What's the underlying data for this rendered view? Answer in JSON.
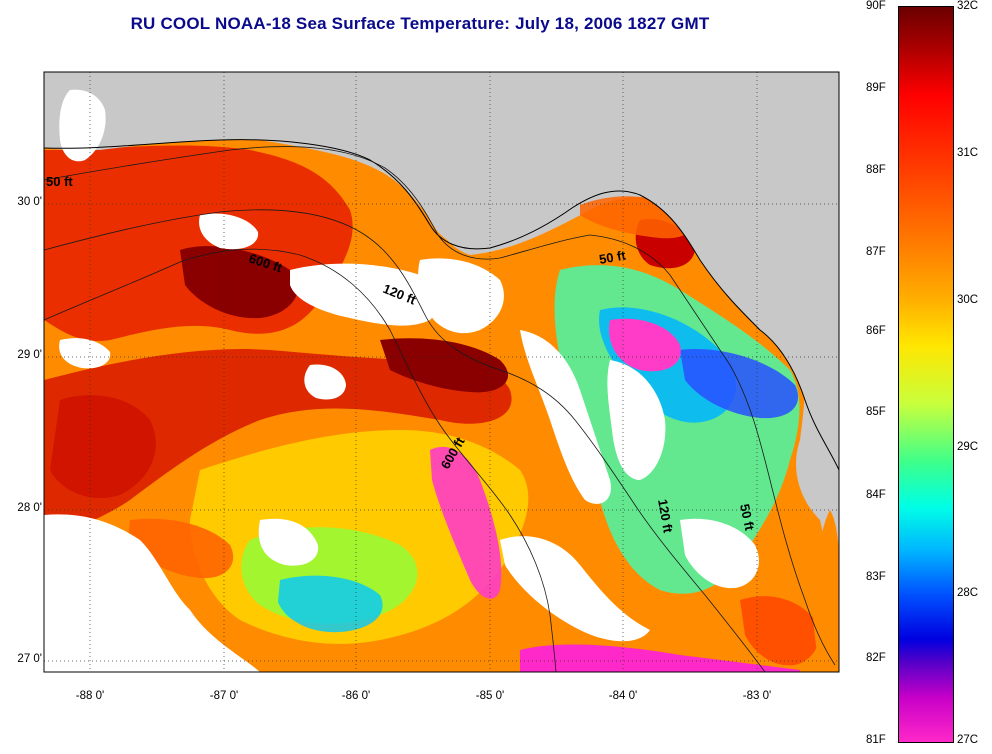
{
  "title": "RU COOL  NOAA-18  Sea Surface Temperature:  July 18, 2006 1827 GMT",
  "map": {
    "lat_labels": [
      "30 0'",
      "29 0'",
      "28 0'",
      "27 0'"
    ],
    "lon_labels": [
      "-88 0'",
      "-87 0'",
      "-86 0'",
      "-85 0'",
      "-84 0'",
      "-83 0'"
    ],
    "depth_labels": [
      "50 ft",
      "600 ft",
      "120 ft",
      "50 ft",
      "600 ft",
      "120 ft",
      "50 ft"
    ],
    "colors": {
      "land": "#c8c8c8",
      "cloud": "#ffffff",
      "frame": "#000000"
    }
  },
  "colorbar": {
    "fahrenheit": [
      "90F",
      "89F",
      "88F",
      "87F",
      "86F",
      "85F",
      "84F",
      "83F",
      "82F",
      "81F"
    ],
    "celsius": [
      "32C",
      "31C",
      "30C",
      "29C",
      "28C",
      "27C"
    ]
  }
}
